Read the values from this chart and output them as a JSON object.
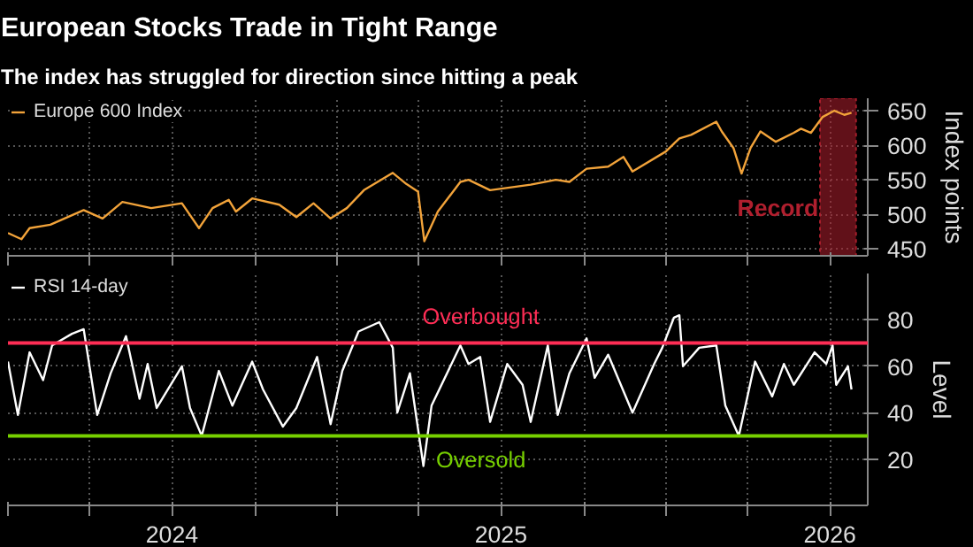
{
  "chart_data": [
    {
      "type": "line",
      "title": "European Stocks Trade in Tight Range",
      "subtitle": "The index has struggled for direction since hitting a peak",
      "ylabel": "Index points",
      "x": [
        "2024-01-01",
        "2024-01-16",
        "2024-01-25",
        "2024-02-17",
        "2024-03-25",
        "2024-04-15",
        "2024-05-07",
        "2024-06-08",
        "2024-07-12",
        "2024-07-31",
        "2024-08-15",
        "2024-09-02",
        "2024-09-10",
        "2024-09-28",
        "2024-10-28",
        "2024-11-16",
        "2024-12-05",
        "2024-12-24",
        "2025-01-11",
        "2025-01-30",
        "2025-03-03",
        "2025-03-18",
        "2025-03-31",
        "2025-04-07",
        "2025-04-22",
        "2025-05-17",
        "2025-05-26",
        "2025-06-19",
        "2025-08-03",
        "2025-08-31",
        "2025-09-15",
        "2025-10-04",
        "2025-10-28",
        "2025-11-14",
        "2025-11-24",
        "2025-12-31",
        "2026-01-15",
        "2026-01-28",
        "2026-02-25",
        "2026-03-03",
        "2026-03-16",
        "2026-03-25",
        "2026-04-04",
        "2026-04-15",
        "2026-05-02",
        "2026-05-22",
        "2026-05-30",
        "2026-06-10",
        "2026-06-23",
        "2026-07-06",
        "2026-07-17",
        "2026-07-25"
      ],
      "series": [
        {
          "name": "Europe 600 Index",
          "color": "#f2a33a",
          "values": [
            473,
            464,
            480,
            485,
            506,
            494,
            518,
            509,
            516,
            480,
            509,
            521,
            504,
            523,
            514,
            496,
            516,
            494,
            509,
            535,
            560,
            544,
            533,
            461,
            504,
            547,
            550,
            535,
            543,
            550,
            547,
            566,
            569,
            583,
            562,
            591,
            610,
            615,
            634,
            620,
            596,
            559,
            596,
            620,
            605,
            618,
            624,
            618,
            641,
            650,
            644,
            647
          ]
        }
      ],
      "xlim": [
        "2024-01-01",
        "2026-08-12"
      ],
      "xticks": [
        {
          "value": "2024-01-01",
          "label": null
        },
        {
          "value": "2024-04-01",
          "label": null
        },
        {
          "value": "2024-07-01",
          "label": null
        },
        {
          "value": "2024-10-01",
          "label": null
        },
        {
          "value": "2025-01-01",
          "label": null
        },
        {
          "value": "2025-04-01",
          "label": null
        },
        {
          "value": "2025-07-01",
          "label": null
        },
        {
          "value": "2025-10-01",
          "label": null
        },
        {
          "value": "2026-01-01",
          "label": null
        },
        {
          "value": "2026-04-01",
          "label": null
        },
        {
          "value": "2026-07-01",
          "label": null
        }
      ],
      "ylim": [
        440,
        668
      ],
      "yticks": [
        450,
        500,
        550,
        600,
        650
      ],
      "bands": [
        {
          "axis": "x",
          "from": "2026-06-20",
          "to": "2026-07-30",
          "label": "Record",
          "color": "#b01f2e"
        }
      ],
      "grid": true,
      "legend": "top left",
      "tick_labels": "y",
      "line_style": "solid",
      "marker": "none"
    },
    {
      "type": "line",
      "ylabel": "Level",
      "x": [
        "2024-01-01",
        "2024-01-12",
        "2024-01-25",
        "2024-02-09",
        "2024-02-19",
        "2024-03-12",
        "2024-03-25",
        "2024-04-09",
        "2024-04-24",
        "2024-05-11",
        "2024-05-26",
        "2024-06-04",
        "2024-06-14",
        "2024-07-12",
        "2024-07-21",
        "2024-08-03",
        "2024-08-22",
        "2024-09-06",
        "2024-09-28",
        "2024-10-10",
        "2024-11-01",
        "2024-11-16",
        "2024-12-09",
        "2024-12-24",
        "2025-01-06",
        "2025-01-24",
        "2025-02-16",
        "2025-03-03",
        "2025-03-08",
        "2025-03-22",
        "2025-04-06",
        "2025-04-15",
        "2025-05-17",
        "2025-05-26",
        "2025-06-08",
        "2025-06-19",
        "2025-07-08",
        "2025-07-25",
        "2025-08-03",
        "2025-08-22",
        "2025-09-02",
        "2025-09-15",
        "2025-10-04",
        "2025-10-13",
        "2025-10-28",
        "2025-11-24",
        "2025-12-18",
        "2025-12-27",
        "2026-01-09",
        "2026-01-15",
        "2026-01-19",
        "2026-02-06",
        "2026-02-25",
        "2026-03-07",
        "2026-03-22",
        "2026-04-09",
        "2026-04-28",
        "2026-05-11",
        "2026-05-22",
        "2026-06-14",
        "2026-06-27",
        "2026-07-04",
        "2026-07-08",
        "2026-07-21",
        "2026-07-25"
      ],
      "series": [
        {
          "name": "RSI 14-day",
          "color": "#ffffff",
          "values": [
            62,
            39,
            66,
            54,
            69,
            74,
            76,
            39,
            57,
            73,
            46,
            61,
            42,
            60,
            42,
            30,
            58,
            43,
            62,
            50,
            34,
            42,
            64,
            35,
            58,
            75,
            79,
            68,
            40,
            57,
            17,
            43,
            69,
            61,
            64,
            36,
            61,
            52,
            36,
            69,
            39,
            57,
            72,
            55,
            65,
            40,
            61,
            68,
            81,
            82,
            60,
            68,
            69,
            43,
            30,
            62,
            47,
            61,
            52,
            66,
            61,
            69,
            52,
            60,
            50
          ]
        }
      ],
      "xlim": [
        "2024-01-01",
        "2026-08-12"
      ],
      "xticks": [
        {
          "value": "2024-01-01",
          "label": null
        },
        {
          "value": "2024-04-01",
          "label": null
        },
        {
          "value": "2024-07-01",
          "label": "2024"
        },
        {
          "value": "2024-10-01",
          "label": null
        },
        {
          "value": "2025-01-01",
          "label": null
        },
        {
          "value": "2025-04-01",
          "label": null
        },
        {
          "value": "2025-07-01",
          "label": "2025"
        },
        {
          "value": "2025-10-01",
          "label": null
        },
        {
          "value": "2026-01-01",
          "label": null
        },
        {
          "value": "2026-04-01",
          "label": null
        },
        {
          "value": "2026-07-01",
          "label": "2026"
        }
      ],
      "ylim": [
        0,
        100
      ],
      "yticks": [
        20,
        40,
        60,
        80
      ],
      "ref_lines": [
        {
          "axis": "y",
          "value": 70,
          "label": "Overbought",
          "color": "#ff2d55"
        },
        {
          "axis": "y",
          "value": 30,
          "label": "Oversold",
          "color": "#77d000"
        }
      ],
      "grid": true,
      "legend": "top left",
      "line_style": "solid",
      "marker": "none"
    }
  ]
}
